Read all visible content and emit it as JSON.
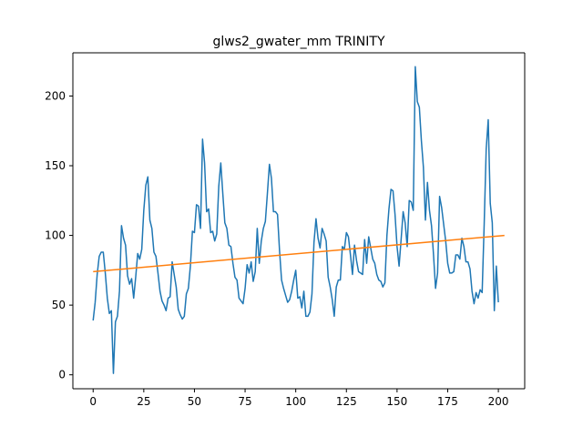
{
  "chart_data": {
    "type": "line",
    "title": "glws2_gwater_mm TRINITY",
    "xlabel": "",
    "ylabel": "",
    "xlim": [
      -10,
      213
    ],
    "ylim": [
      -10,
      231
    ],
    "x_ticks": [
      0,
      25,
      50,
      75,
      100,
      125,
      150,
      175,
      200
    ],
    "y_ticks": [
      0,
      50,
      100,
      150,
      200
    ],
    "grid": false,
    "colors": {
      "series": "#1f77b4",
      "trend": "#ff7f0e"
    },
    "series": [
      {
        "values": [
          39,
          52,
          72,
          85,
          88,
          88,
          73,
          55,
          44,
          46,
          1,
          38,
          42,
          60,
          107,
          98,
          93,
          71,
          65,
          69,
          55,
          70,
          87,
          83,
          90,
          118,
          136,
          142,
          111,
          105,
          88,
          85,
          73,
          60,
          53,
          50,
          46,
          55,
          56,
          81,
          72,
          63,
          47,
          43,
          40,
          42,
          58,
          62,
          78,
          103,
          102,
          122,
          121,
          105,
          169,
          152,
          117,
          119,
          102,
          103,
          96,
          101,
          135,
          152,
          130,
          109,
          105,
          93,
          92,
          80,
          70,
          68,
          55,
          53,
          51,
          62,
          79,
          73,
          81,
          67,
          74,
          105,
          80,
          96,
          105,
          110,
          130,
          151,
          141,
          117,
          117,
          115,
          89,
          68,
          62,
          57,
          52,
          54,
          60,
          68,
          75,
          55,
          56,
          48,
          60,
          42,
          42,
          45,
          58,
          95,
          112,
          98,
          91,
          105,
          101,
          96,
          70,
          63,
          54,
          42,
          63,
          68,
          68,
          92,
          90,
          102,
          99,
          86,
          72,
          93,
          82,
          74,
          73,
          72,
          97,
          80,
          99,
          91,
          83,
          80,
          72,
          68,
          67,
          63,
          66,
          100,
          119,
          133,
          132,
          115,
          92,
          78,
          97,
          117,
          109,
          92,
          125,
          124,
          118,
          221,
          196,
          192,
          168,
          149,
          111,
          138,
          118,
          107,
          86,
          62,
          73,
          128,
          120,
          108,
          96,
          80,
          73,
          73,
          74,
          86,
          86,
          83,
          98,
          92,
          81,
          81,
          76,
          60,
          51,
          59,
          55,
          61,
          59,
          108,
          162,
          183,
          123,
          109,
          46,
          78,
          52
        ]
      },
      {
        "x": [
          0,
          203
        ],
        "values": [
          74,
          100
        ]
      }
    ]
  }
}
